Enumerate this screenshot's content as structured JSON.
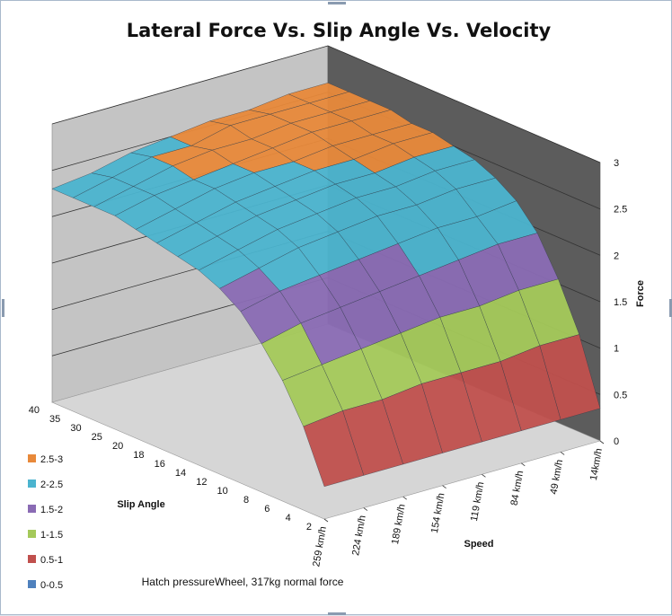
{
  "chart_data": {
    "type": "surface",
    "title": "Lateral Force Vs. Slip Angle Vs. Velocity",
    "z_axis": {
      "label": "Force",
      "min": 0,
      "max": 3,
      "ticks": [
        "0",
        "0.5",
        "1",
        "1.5",
        "2",
        "2.5",
        "3"
      ]
    },
    "x_axis": {
      "label": "Speed",
      "categories": [
        "259 km/h",
        "224 km/h",
        "189 km/h",
        "154 km/h",
        "119 km/h",
        "84 km/h",
        "49 km/h",
        "14km/h"
      ]
    },
    "y_axis": {
      "label": "Slip Angle",
      "categories": [
        "2",
        "4",
        "6",
        "8",
        "10",
        "12",
        "14",
        "16",
        "18",
        "20",
        "25",
        "30",
        "35",
        "40"
      ]
    },
    "legend": {
      "position": "bottom-left",
      "entries": [
        {
          "label": "2.5-3",
          "color": "#e8893a"
        },
        {
          "label": "2-2.5",
          "color": "#4bb4cf"
        },
        {
          "label": "1.5-2",
          "color": "#8a6bb4"
        },
        {
          "label": "1-1.5",
          "color": "#a4c95a"
        },
        {
          "label": "0.5-1",
          "color": "#c0504d"
        },
        {
          "label": "0-0.5",
          "color": "#4f81bd"
        }
      ]
    },
    "series_rows": [
      [
        0.35,
        0.35,
        0.35,
        0.35,
        0.35,
        0.35,
        0.35,
        0.35
      ],
      [
        0.9,
        0.95,
        0.95,
        1.0,
        1.0,
        1.0,
        1.05,
        1.05
      ],
      [
        1.3,
        1.35,
        1.4,
        1.45,
        1.5,
        1.5,
        1.55,
        1.55
      ],
      [
        1.6,
        1.7,
        1.75,
        1.8,
        1.85,
        1.9,
        1.95,
        1.95
      ],
      [
        1.85,
        1.95,
        2.0,
        2.05,
        2.1,
        2.15,
        2.15,
        2.2
      ],
      [
        2.0,
        2.1,
        2.2,
        2.25,
        2.3,
        2.3,
        2.35,
        2.35
      ],
      [
        2.1,
        2.2,
        2.3,
        2.35,
        2.4,
        2.4,
        2.45,
        2.45
      ],
      [
        2.15,
        2.25,
        2.35,
        2.4,
        2.45,
        2.45,
        2.5,
        2.5
      ],
      [
        2.2,
        2.3,
        2.4,
        2.45,
        2.5,
        2.5,
        2.55,
        2.55
      ],
      [
        2.25,
        2.35,
        2.45,
        2.5,
        2.5,
        2.55,
        2.55,
        2.55
      ],
      [
        2.3,
        2.4,
        2.45,
        2.5,
        2.55,
        2.6,
        2.6,
        2.6
      ],
      [
        2.3,
        2.4,
        2.5,
        2.55,
        2.55,
        2.6,
        2.6,
        2.6
      ],
      [
        2.3,
        2.4,
        2.5,
        2.5,
        2.6,
        2.6,
        2.6,
        2.6
      ],
      [
        2.3,
        2.35,
        2.45,
        2.5,
        2.55,
        2.55,
        2.6,
        2.6
      ]
    ],
    "grid": true
  },
  "note": "Hatch pressureWheel, 317kg normal force"
}
